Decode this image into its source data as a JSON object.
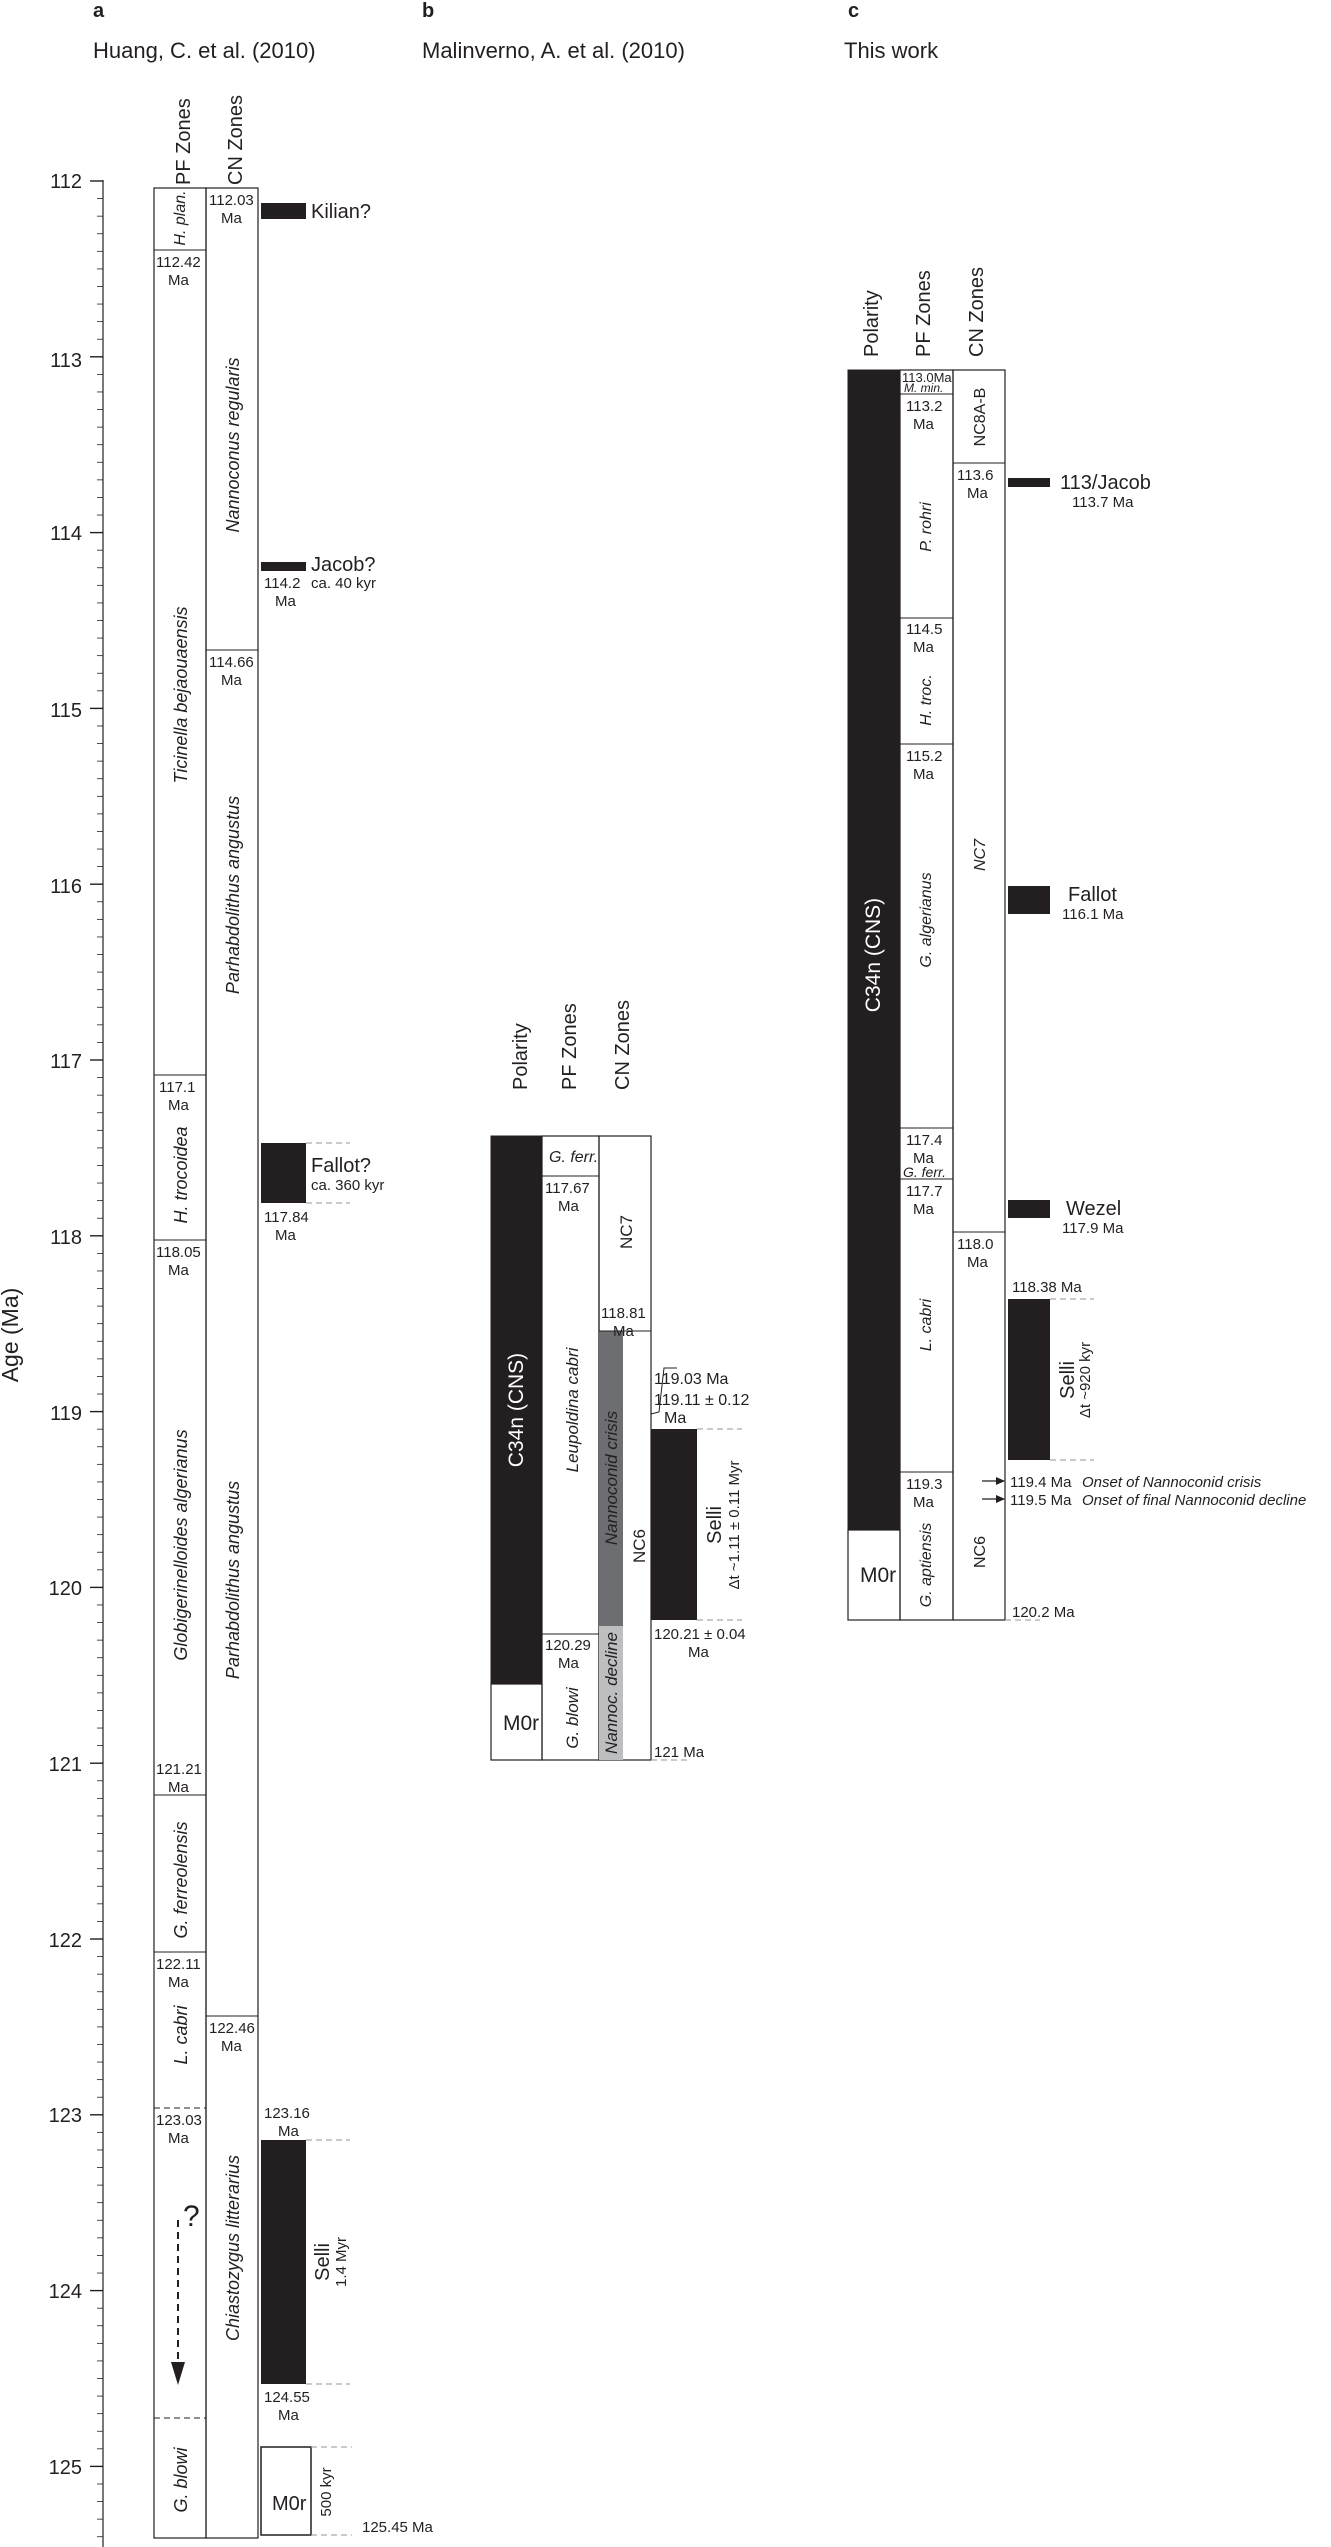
{
  "colors": {
    "ink": "#231f20",
    "bar": "#231f20",
    "crisis": "#6d6e71",
    "decline": "#bcbec0",
    "dash": "#939598"
  },
  "axis": {
    "label": "Age (Ma)",
    "ticks": [
      "112",
      "113",
      "114",
      "115",
      "116",
      "117",
      "118",
      "119",
      "120",
      "121",
      "122",
      "123",
      "124",
      "125"
    ]
  },
  "panel_a": {
    "letter": "a",
    "title": "Huang, C. et al. (2010)",
    "pf_header": "PF Zones",
    "cn_header": "CN Zones",
    "pf_zones": [
      "H. plan.",
      "Ticinella bejaouaensis",
      "H. trocoidea",
      "Globigerinelloides algerianus",
      "G. ferreolensis",
      "L. cabri",
      "G. blowi"
    ],
    "pf_ages": [
      "112.42",
      "117.1",
      "118.05",
      "121.21",
      "122.11",
      "123.03"
    ],
    "cn_zones": [
      "Nannoconus regularis",
      "Parhabdolithus angustus",
      "Parhabdolithus angustus",
      "Chiastozygus litterarius"
    ],
    "cn_ages": [
      "112.03",
      "114.66",
      "122.46"
    ],
    "unit": "Ma",
    "question": "?",
    "events": [
      {
        "name": "Kilian?",
        "sub": ""
      },
      {
        "name": "Jacob?",
        "sub": "ca. 40 kyr",
        "age": "114.2"
      },
      {
        "name": "Fallot?",
        "sub": "ca. 360 kyr",
        "age": "117.84"
      },
      {
        "name": "Selli",
        "sub": "1.4 Myr",
        "age_top": "123.16",
        "age_bottom": "124.55"
      }
    ],
    "m0r": {
      "label": "M0r",
      "duration": "500 kyr",
      "base": "125.45 Ma"
    }
  },
  "panel_b": {
    "letter": "b",
    "title": "Malinverno, A. et al. (2010)",
    "polarity_header": "Polarity",
    "pf_header": "PF Zones",
    "cn_header": "CN Zones",
    "polarity": [
      "C34n (CNS)",
      "M0r"
    ],
    "pf_zones": [
      "G. ferr.",
      "Leupoldina cabri",
      "G. blowi"
    ],
    "pf_ages": [
      "117.67",
      "120.29"
    ],
    "cn_zones": [
      "NC7",
      "NC6",
      "Nannoconid crisis",
      "Nannoc. decline"
    ],
    "cn_age": "118.81",
    "unit": "Ma",
    "ages_right": [
      "119.03 Ma",
      "119.11 ± 0.12",
      "Ma",
      "121 Ma"
    ],
    "selli": {
      "name": "Selli",
      "sub": "Δt ~1.11 ± 0.11 Myr",
      "age_bottom": "120.21 ± 0.04"
    }
  },
  "panel_c": {
    "letter": "c",
    "title": "This work",
    "polarity_header": "Polarity",
    "pf_header": "PF Zones",
    "cn_header": "CN Zones",
    "polarity": [
      "C34n (CNS)",
      "M0r"
    ],
    "pf_zones": [
      "M. min.",
      "P. rohri",
      "H. troc.",
      "G. algerianus",
      "G. ferr.",
      "L. cabri",
      "G. aptiensis"
    ],
    "pf_ages": [
      "113.0Ma",
      "113.2",
      "114.5",
      "115.2",
      "117.4",
      "117.7",
      "119.3"
    ],
    "cn_zones": [
      "NC8A-B",
      "NC7",
      "NC6"
    ],
    "cn_ages": [
      "113.6",
      "118.0"
    ],
    "unit": "Ma",
    "events": [
      {
        "name": "113/Jacob",
        "sub": "113.7 Ma"
      },
      {
        "name": "Fallot",
        "sub": "116.1 Ma"
      },
      {
        "name": "Wezel",
        "sub": "117.9 Ma"
      },
      {
        "name": "Selli",
        "sub": "Δt ~920 kyr",
        "age_top": "118.38 Ma"
      }
    ],
    "onsets": [
      {
        "age": "119.4 Ma",
        "text": "Onset of Nannoconid crisis"
      },
      {
        "age": "119.5 Ma",
        "text": "Onset of final Nannoconid decline"
      }
    ],
    "base_age": "120.2 Ma"
  }
}
